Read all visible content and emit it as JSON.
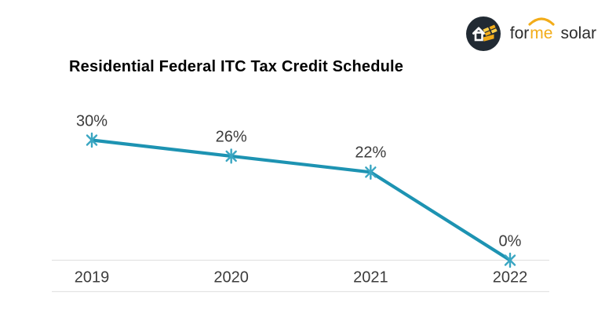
{
  "title": "Residential Federal ITC Tax Credit Schedule",
  "logo": {
    "icon": "house-with-solar-panels-icon",
    "text_for": "for",
    "text_me": "me",
    "text_solar": "solar",
    "ink_color": "#2d2d2d",
    "amber_color": "#f2ac19",
    "amber_light_color": "#ffd04a",
    "badge_color": "#212a33"
  },
  "chart_data": {
    "type": "line",
    "title": "Residential Federal ITC Tax Credit Schedule",
    "categories": [
      "2019",
      "2020",
      "2021",
      "2022"
    ],
    "values": [
      30,
      26,
      22,
      0
    ],
    "point_labels": [
      "30%",
      "26%",
      "22%",
      "0%"
    ],
    "xlabel": "",
    "ylabel": "",
    "ylim": [
      0,
      30
    ],
    "grid": false,
    "legend": false,
    "marker": "asterisk",
    "line_color": "#1d93b2",
    "marker_color": "#3aa6c2",
    "axis_line_color": "#e3e3e3",
    "label_color": "#3c3c3c"
  }
}
